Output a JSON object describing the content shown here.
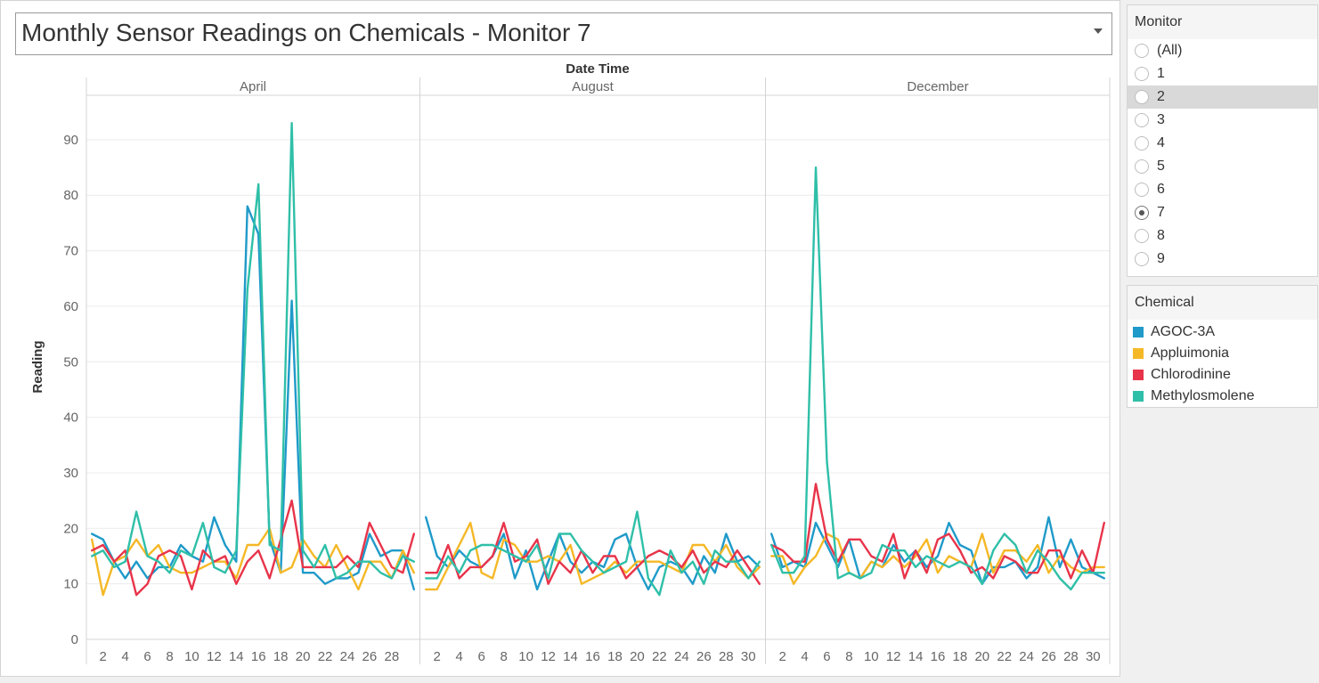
{
  "title": "Monthly Sensor Readings on Chemicals - Monitor 7",
  "monitor_filter": {
    "title": "Monitor",
    "options": [
      "(All)",
      "1",
      "2",
      "3",
      "4",
      "5",
      "6",
      "7",
      "8",
      "9"
    ],
    "selected": "7",
    "hovered": "2"
  },
  "chemical_legend": {
    "title": "Chemical",
    "items": [
      {
        "name": "AGOC-3A",
        "color": "#1f9ac9"
      },
      {
        "name": "Appluimonia",
        "color": "#f5b826"
      },
      {
        "name": "Chlorodinine",
        "color": "#e8344a"
      },
      {
        "name": "Methylosmolene",
        "color": "#2fbfa8"
      }
    ]
  },
  "chart_data": {
    "type": "line",
    "column_header": "Date Time",
    "ylabel": "Reading",
    "ylim": [
      0,
      98
    ],
    "yticks": [
      0,
      10,
      20,
      30,
      40,
      50,
      60,
      70,
      80,
      90
    ],
    "grid": true,
    "legend": "right",
    "panels": [
      {
        "month": "April",
        "xticks": [
          2,
          4,
          6,
          8,
          10,
          12,
          14,
          16,
          18,
          20,
          22,
          24,
          26,
          28
        ],
        "x": [
          1,
          2,
          3,
          4,
          5,
          6,
          7,
          8,
          9,
          10,
          11,
          12,
          13,
          14,
          15,
          16,
          17,
          18,
          19,
          20,
          21,
          22,
          23,
          24,
          25,
          26,
          27,
          28,
          29,
          30
        ],
        "series": [
          {
            "name": "AGOC-3A",
            "values": [
              19,
              18,
              14,
              11,
              14,
              11,
              13,
              13,
              17,
              15,
              14,
              22,
              17,
              14,
              78,
              73,
              18,
              12,
              61,
              12,
              12,
              10,
              11,
              11,
              12,
              19,
              15,
              16,
              16,
              9
            ]
          },
          {
            "name": "Appluimonia",
            "values": [
              18,
              8,
              14,
              15,
              18,
              15,
              17,
              13,
              12,
              12,
              13,
              14,
              14,
              11,
              17,
              17,
              20,
              12,
              13,
              18,
              15,
              13,
              17,
              13,
              9,
              14,
              14,
              11,
              16,
              12
            ]
          },
          {
            "name": "Chlorodinine",
            "values": [
              16,
              17,
              14,
              16,
              8,
              10,
              15,
              16,
              15,
              9,
              16,
              14,
              15,
              10,
              14,
              16,
              11,
              18,
              25,
              13,
              13,
              13,
              13,
              15,
              13,
              21,
              17,
              13,
              12,
              19
            ]
          },
          {
            "name": "Methylosmolene",
            "values": [
              15,
              16,
              13,
              14,
              23,
              15,
              14,
              12,
              16,
              15,
              21,
              13,
              12,
              16,
              63,
              82,
              17,
              16,
              93,
              16,
              13,
              17,
              11,
              12,
              14,
              14,
              12,
              11,
              15,
              14
            ]
          }
        ]
      },
      {
        "month": "August",
        "xticks": [
          2,
          4,
          6,
          8,
          10,
          12,
          14,
          16,
          18,
          20,
          22,
          24,
          26,
          28,
          30
        ],
        "x": [
          1,
          2,
          3,
          4,
          5,
          6,
          7,
          8,
          9,
          10,
          11,
          12,
          13,
          14,
          15,
          16,
          17,
          18,
          19,
          20,
          21,
          22,
          23,
          24,
          25,
          26,
          27,
          28,
          29,
          30,
          31
        ],
        "series": [
          {
            "name": "AGOC-3A",
            "values": [
              22,
              15,
              13,
              16,
              14,
              13,
              15,
              19,
              11,
              16,
              9,
              14,
              19,
              14,
              12,
              14,
              13,
              18,
              19,
              13,
              9,
              13,
              14,
              13,
              10,
              15,
              12,
              19,
              14,
              15,
              13
            ]
          },
          {
            "name": "Appluimonia",
            "values": [
              9,
              9,
              13,
              17,
              21,
              12,
              11,
              18,
              17,
              14,
              14,
              15,
              14,
              17,
              10,
              11,
              12,
              14,
              12,
              14,
              14,
              14,
              13,
              12,
              17,
              17,
              14,
              17,
              13,
              11,
              13
            ]
          },
          {
            "name": "Chlorodinine",
            "values": [
              12,
              12,
              17,
              11,
              13,
              13,
              15,
              21,
              14,
              15,
              18,
              10,
              14,
              12,
              16,
              12,
              15,
              15,
              11,
              13,
              15,
              16,
              15,
              13,
              16,
              12,
              14,
              13,
              16,
              13,
              10
            ]
          },
          {
            "name": "Methylosmolene",
            "values": [
              11,
              11,
              15,
              12,
              16,
              17,
              17,
              16,
              15,
              14,
              17,
              11,
              19,
              19,
              16,
              14,
              12,
              13,
              14,
              23,
              11,
              8,
              16,
              12,
              14,
              10,
              16,
              14,
              14,
              11,
              14
            ]
          }
        ]
      },
      {
        "month": "December",
        "xticks": [
          2,
          4,
          6,
          8,
          10,
          12,
          14,
          16,
          18,
          20,
          22,
          24,
          26,
          28,
          30
        ],
        "x": [
          1,
          2,
          3,
          4,
          5,
          6,
          7,
          8,
          9,
          10,
          11,
          12,
          13,
          14,
          15,
          16,
          17,
          18,
          19,
          20,
          21,
          22,
          23,
          24,
          25,
          26,
          27,
          28,
          29,
          30,
          31
        ],
        "series": [
          {
            "name": "AGOC-3A",
            "values": [
              19,
              13,
              14,
              13,
              21,
              17,
              13,
              18,
              11,
              14,
              13,
              17,
              14,
              16,
              13,
              15,
              21,
              17,
              16,
              10,
              13,
              13,
              14,
              11,
              13,
              22,
              13,
              18,
              13,
              12,
              11
            ]
          },
          {
            "name": "Appluimonia",
            "values": [
              15,
              15,
              10,
              13,
              15,
              19,
              18,
              12,
              11,
              14,
              13,
              15,
              13,
              15,
              18,
              12,
              15,
              14,
              13,
              19,
              12,
              16,
              16,
              14,
              17,
              12,
              15,
              13,
              12,
              13,
              13
            ]
          },
          {
            "name": "Chlorodinine",
            "values": [
              17,
              16,
              14,
              14,
              28,
              18,
              14,
              18,
              18,
              15,
              14,
              19,
              11,
              16,
              12,
              18,
              19,
              16,
              12,
              13,
              11,
              15,
              14,
              12,
              12,
              16,
              16,
              11,
              16,
              12,
              21
            ]
          },
          {
            "name": "Methylosmolene",
            "values": [
              17,
              12,
              12,
              15,
              85,
              32,
              11,
              12,
              11,
              12,
              17,
              16,
              16,
              13,
              15,
              14,
              13,
              14,
              13,
              10,
              16,
              19,
              17,
              12,
              16,
              14,
              11,
              9,
              12,
              12,
              12
            ]
          }
        ]
      }
    ]
  }
}
